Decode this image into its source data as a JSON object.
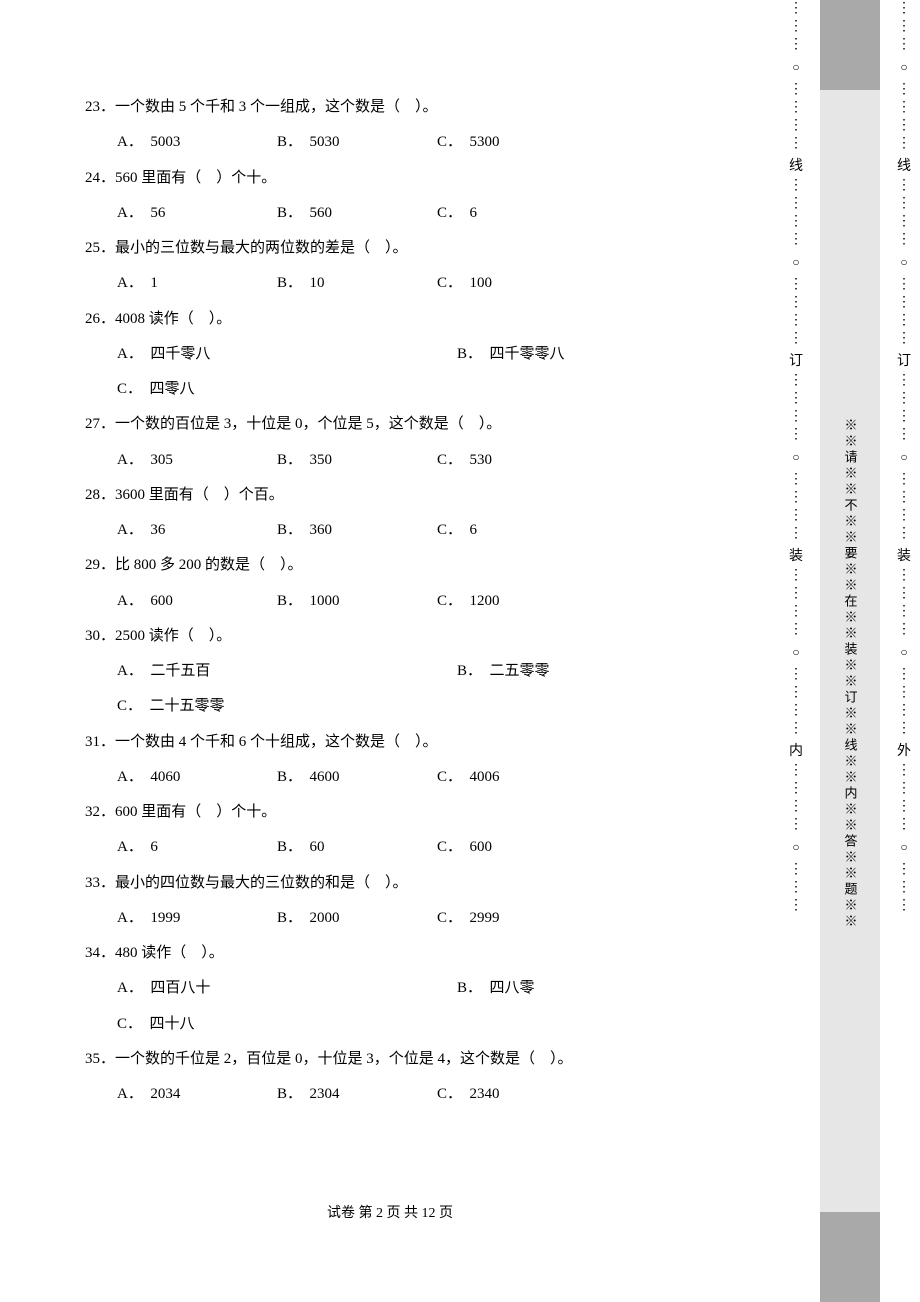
{
  "questions": [
    {
      "num": "23",
      "stem": "一个数由 5 个千和 3 个一组成，这个数是（　）。",
      "layout": "row3",
      "opts": [
        "5003",
        "5030",
        "5300"
      ]
    },
    {
      "num": "24",
      "stem": "560 里面有（　）个十。",
      "layout": "row3",
      "opts": [
        "56",
        "560",
        "6"
      ]
    },
    {
      "num": "25",
      "stem": "最小的三位数与最大的两位数的差是（　）。",
      "layout": "row3",
      "opts": [
        "1",
        "10",
        "100"
      ]
    },
    {
      "num": "26",
      "stem": "4008 读作（　）。",
      "layout": "two-plus-one",
      "opts": [
        "四千零八",
        "四千零零八",
        "四零八"
      ]
    },
    {
      "num": "27",
      "stem": "一个数的百位是 3，十位是 0，个位是 5，这个数是（　）。",
      "layout": "row3",
      "opts": [
        "305",
        "350",
        "530"
      ]
    },
    {
      "num": "28",
      "stem": "3600 里面有（　）个百。",
      "layout": "row3",
      "opts": [
        "36",
        "360",
        "6"
      ]
    },
    {
      "num": "29",
      "stem": "比 800 多 200 的数是（　）。",
      "layout": "row3",
      "opts": [
        "600",
        "1000",
        "1200"
      ]
    },
    {
      "num": "30",
      "stem": "2500 读作（　）。",
      "layout": "two-plus-one",
      "opts": [
        "二千五百",
        "二五零零",
        "二十五零零"
      ]
    },
    {
      "num": "31",
      "stem": "一个数由 4 个千和 6 个十组成，这个数是（　）。",
      "layout": "row3",
      "opts": [
        "4060",
        "4600",
        "4006"
      ]
    },
    {
      "num": "32",
      "stem": "600 里面有（　）个十。",
      "layout": "row3",
      "opts": [
        "6",
        "60",
        "600"
      ]
    },
    {
      "num": "33",
      "stem": "最小的四位数与最大的三位数的和是（　）。",
      "layout": "row3",
      "opts": [
        "1999",
        "2000",
        "2999"
      ]
    },
    {
      "num": "34",
      "stem": "480 读作（　）。",
      "layout": "two-plus-one",
      "opts": [
        "四百八十",
        "四八零",
        "四十八"
      ]
    },
    {
      "num": "35",
      "stem": "一个数的千位是 2，百位是 0，十位是 3，个位是 4，这个数是（　）。",
      "layout": "row3",
      "opts": [
        "2034",
        "2304",
        "2340"
      ]
    }
  ],
  "labels": {
    "A": "A．",
    "B": "B．",
    "C": "C．"
  },
  "footer": "试卷 第 2 页 共 12 页",
  "binding": {
    "warn_text": "※※请※※不※※要※※在※※装※※订※※线※※内※※答※※题※※",
    "markers_inner": [
      "线",
      "订",
      "装",
      "内"
    ],
    "markers_outer": [
      "线",
      "订",
      "装",
      "外"
    ],
    "dots": "⋮",
    "circle": "○",
    "gray_top": "#a9a9a9",
    "gray_mid": "#e6e6e6"
  }
}
